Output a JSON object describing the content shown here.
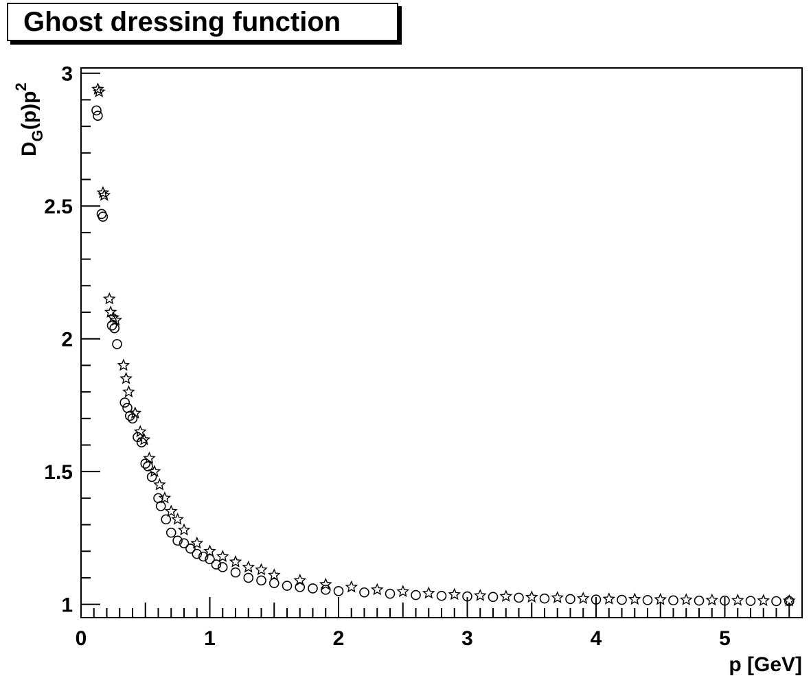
{
  "chart_data": {
    "type": "scatter",
    "title": "Ghost dressing function",
    "xlabel": "p [GeV]",
    "ylabel": {
      "base": "D",
      "sub": "G",
      "mid": "(p)p",
      "sup": "2"
    },
    "xlim": [
      0,
      5.6
    ],
    "ylim": [
      0.95,
      3.02
    ],
    "x_ticks": [
      "0",
      "1",
      "2",
      "3",
      "4",
      "5"
    ],
    "y_ticks": [
      "1",
      "1.5",
      "2",
      "2.5",
      "3"
    ],
    "grid": false,
    "legend": "none",
    "series": [
      {
        "marker": "open-circle",
        "x": [
          0.12,
          0.13,
          0.16,
          0.17,
          0.24,
          0.26,
          0.28,
          0.34,
          0.36,
          0.38,
          0.4,
          0.44,
          0.47,
          0.5,
          0.52,
          0.55,
          0.6,
          0.62,
          0.66,
          0.7,
          0.75,
          0.8,
          0.85,
          0.9,
          0.95,
          1.0,
          1.05,
          1.1,
          1.2,
          1.3,
          1.4,
          1.5,
          1.6,
          1.7,
          1.8,
          1.9,
          2.0,
          2.2,
          2.4,
          2.6,
          2.8,
          3.0,
          3.2,
          3.4,
          3.6,
          3.8,
          4.0,
          4.2,
          4.4,
          4.6,
          4.8,
          5.0,
          5.2,
          5.4,
          5.5
        ],
        "y": [
          2.86,
          2.84,
          2.47,
          2.46,
          2.05,
          2.04,
          1.98,
          1.76,
          1.74,
          1.71,
          1.7,
          1.63,
          1.61,
          1.53,
          1.52,
          1.48,
          1.4,
          1.37,
          1.32,
          1.27,
          1.24,
          1.23,
          1.21,
          1.19,
          1.18,
          1.17,
          1.15,
          1.14,
          1.12,
          1.1,
          1.09,
          1.08,
          1.07,
          1.065,
          1.06,
          1.055,
          1.05,
          1.045,
          1.04,
          1.035,
          1.032,
          1.03,
          1.028,
          1.025,
          1.022,
          1.02,
          1.018,
          1.017,
          1.016,
          1.015,
          1.014,
          1.014,
          1.013,
          1.012,
          1.012
        ]
      },
      {
        "marker": "open-star",
        "x": [
          0.13,
          0.14,
          0.17,
          0.18,
          0.22,
          0.23,
          0.25,
          0.27,
          0.33,
          0.35,
          0.37,
          0.42,
          0.46,
          0.49,
          0.53,
          0.57,
          0.61,
          0.65,
          0.7,
          0.75,
          0.8,
          0.9,
          1.0,
          1.1,
          1.2,
          1.3,
          1.4,
          1.5,
          1.7,
          1.9,
          2.1,
          2.3,
          2.5,
          2.7,
          2.9,
          3.1,
          3.3,
          3.5,
          3.7,
          3.9,
          4.1,
          4.3,
          4.5,
          4.7,
          4.9,
          5.1,
          5.3,
          5.5
        ],
        "y": [
          2.94,
          2.93,
          2.55,
          2.54,
          2.15,
          2.1,
          2.08,
          2.07,
          1.9,
          1.85,
          1.8,
          1.72,
          1.65,
          1.62,
          1.55,
          1.5,
          1.45,
          1.4,
          1.35,
          1.32,
          1.28,
          1.23,
          1.2,
          1.18,
          1.16,
          1.14,
          1.13,
          1.11,
          1.09,
          1.075,
          1.065,
          1.055,
          1.048,
          1.042,
          1.037,
          1.033,
          1.03,
          1.027,
          1.025,
          1.022,
          1.02,
          1.019,
          1.018,
          1.017,
          1.016,
          1.015,
          1.014,
          1.013
        ]
      }
    ]
  }
}
